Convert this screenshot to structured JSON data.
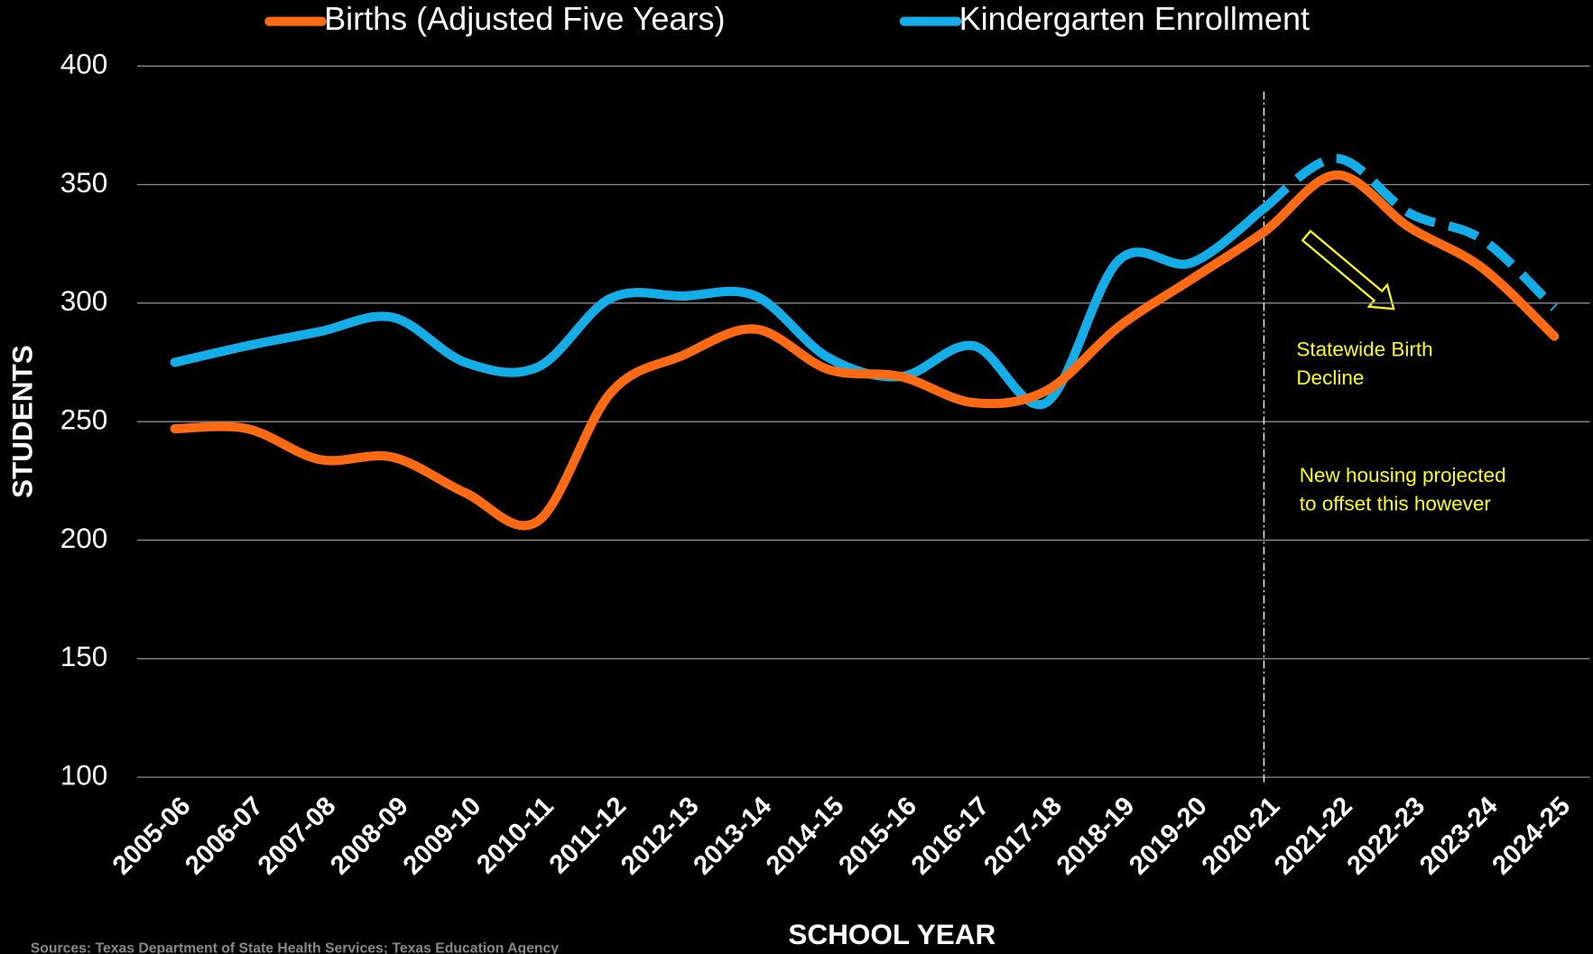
{
  "chart_data": {
    "type": "line",
    "xlabel": "SCHOOL YEAR",
    "ylabel": "STUDENTS",
    "categories": [
      "2005-06",
      "2006-07",
      "2007-08",
      "2008-09",
      "2009-10",
      "2010-11",
      "2011-12",
      "2012-13",
      "2013-14",
      "2014-15",
      "2015-16",
      "2016-17",
      "2017-18",
      "2018-19",
      "2019-20",
      "2020-21",
      "2021-22",
      "2022-23",
      "2023-24",
      "2024-25"
    ],
    "series": [
      {
        "name": "Births (Adjusted Five Years)",
        "color": "#ff6a13",
        "values": [
          247,
          247,
          234,
          235,
          220,
          208,
          262,
          278,
          289,
          272,
          269,
          258,
          263,
          290,
          310,
          330,
          354,
          332,
          315,
          286
        ]
      },
      {
        "name": "Kindergarten Enrollment",
        "color": "#13aee8",
        "values": [
          275,
          282,
          288,
          294,
          275,
          273,
          302,
          303,
          303,
          277,
          269,
          282,
          258,
          318,
          317,
          340,
          null,
          null,
          null,
          null
        ]
      },
      {
        "color": "#13aee8",
        "dashed": true,
        "values": [
          null,
          null,
          null,
          null,
          null,
          null,
          null,
          null,
          null,
          null,
          null,
          null,
          null,
          null,
          null,
          340,
          361,
          338,
          327,
          298
        ]
      }
    ],
    "ylim": [
      100,
      400
    ],
    "yticks": [
      100,
      150,
      200,
      250,
      300,
      350,
      400
    ],
    "grid": true,
    "legend": "top",
    "vline": "2020-21",
    "annotations": [
      {
        "lines": [
          "Statewide Birth",
          "Decline"
        ],
        "color": "#ffff00"
      },
      {
        "lines": [
          "New housing projected",
          "to offset this however"
        ],
        "color": "#ffff00"
      }
    ],
    "source": "Sources: Texas Department of State Health Services; Texas Education Agency"
  }
}
